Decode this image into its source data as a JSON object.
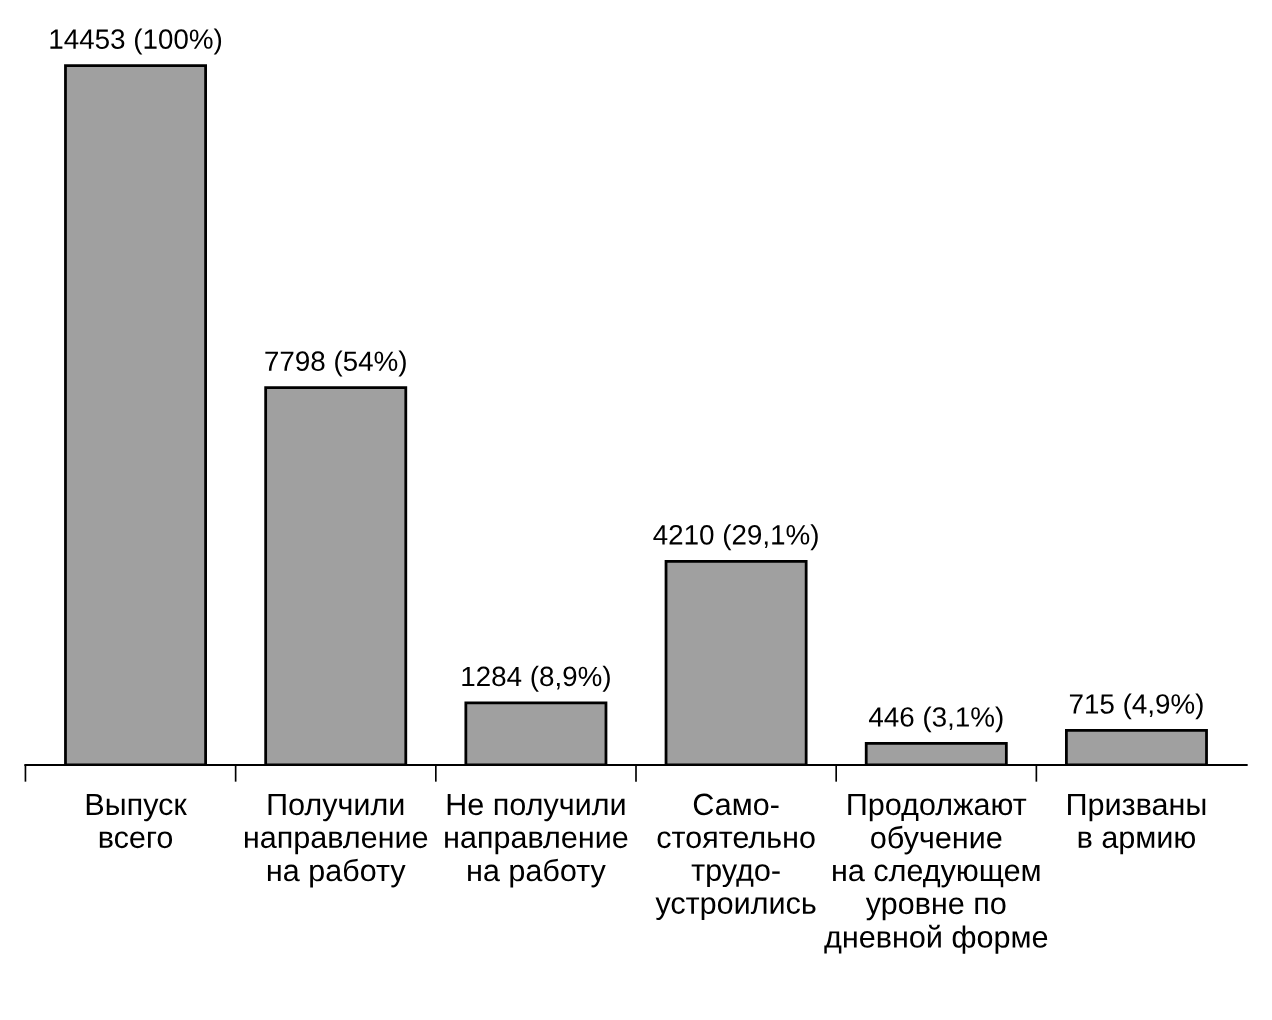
{
  "chart_data": {
    "type": "bar",
    "categories": [
      "Выпуск\nвсего",
      "Получили\nнаправление\nна работу",
      "Не получили\nнаправление\nна работу",
      "Само-\nстоятельно\nтрудо-\nустроились",
      "Продолжают\nобучение\nна следующем\nуровне по\nдневной форме",
      "Призваны\nв армию"
    ],
    "values": [
      14453,
      7798,
      1284,
      4210,
      446,
      715
    ],
    "value_labels": [
      "14453 (100%)",
      "7798 (54%)",
      "1284 (8,9%)",
      "4210 (29,1%)",
      "446 (3,1%)",
      "715 (4,9%)"
    ],
    "color": "#a0a0a0",
    "grid": false,
    "legend": false
  }
}
